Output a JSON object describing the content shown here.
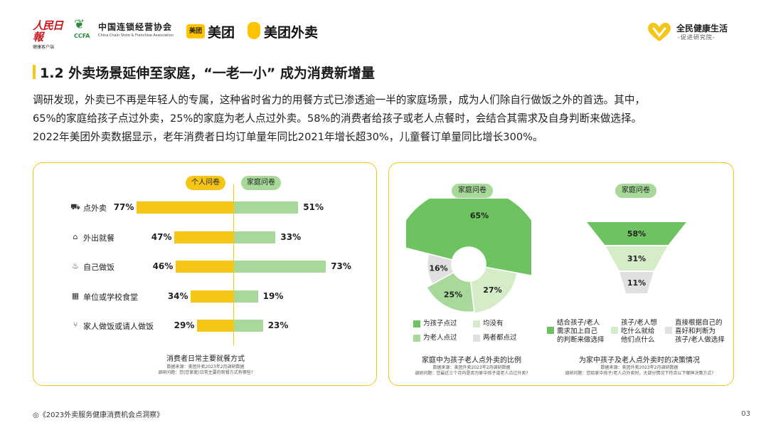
{
  "header": {
    "rmrb_mark": "人民日報",
    "rmrb_sub": "健康客户端",
    "ccfa_abbr": "CCFA",
    "ccfa_cn": "中国连锁经营协会",
    "ccfa_en": "China Chain Store & Franchise Association",
    "meituan_badge": "美团",
    "meituan_name": "美团",
    "meituan_waimai": "美团外卖",
    "right_logo_title": "全民健康生活",
    "right_logo_sub": "-促进研究院-"
  },
  "section_title": "1.2 外卖场景延伸至家庭，“一老一小” 成为消费新增量",
  "body_lines": [
    "调研发现，外卖已不再是年轻人的专属，这种省时省力的用餐方式已渗透逾一半的家庭场景，成为人们除自行做饭之外的首选。其中，",
    "65%的家庭给孩子点过外卖，25%的家庭为老人点过外卖。58%的消费者给孩子或老人点餐时，会结合其需求及自身判断来做选择。",
    "2022年美团外卖数据显示，老年消费者日均订单量年同比2021年增长超30%，儿童餐订单量同比增长300%。"
  ],
  "left_panel": {
    "pill_personal": "个人问卷",
    "pill_family": "家庭问卷",
    "caption_title": "消费者日常主要就餐方式",
    "caption_src1": "数据来源：美团外卖2023年2月调研数据",
    "caption_src2": "调研问题：您(您家庭)日常主要的就餐方式有哪些?"
  },
  "right_panel": {
    "pie_pill": "家庭问卷",
    "funnel_pill": "家庭问卷",
    "pie_caption": "家庭中为孩子老人点外卖的比例",
    "pie_src1": "数据来源：美团外卖2023年2月调研数据",
    "pie_src2": "调研问题：您最近三个月内是否为家中孩子或老人点过外卖?",
    "funnel_caption": "为家中孩子及老人点外卖时的决策情况",
    "funnel_src1": "数据来源：美团外卖2023年2月调研数据",
    "funnel_src2": "调研问题：您给家中孩子/老人点外卖时，大部分情况下符合以下哪种决策方式?",
    "pie_legend": [
      {
        "label": "为孩子点过",
        "color": "#6cc35f"
      },
      {
        "label": "均没有",
        "color": "#d5ecc9"
      },
      {
        "label": "为老人点过",
        "color": "#a8d99a"
      },
      {
        "label": "两者都点过",
        "color": "#e0e0e0"
      }
    ],
    "funnel_legend": [
      {
        "lines": [
          "结合孩子/老人",
          "需求加上自己",
          "的判断来做选择"
        ],
        "color": "#6cc35f"
      },
      {
        "lines": [
          "孩子/老人想",
          "吃什么就给",
          "他们点什么"
        ],
        "color": "#d5ecc9"
      },
      {
        "lines": [
          "直接根据自己的",
          "喜好和判断为",
          "孩子/老人做选择"
        ],
        "color": "#e0e0e0"
      }
    ]
  },
  "chart_data": [
    {
      "type": "bar",
      "title": "消费者日常主要就餐方式",
      "categories": [
        "点外卖",
        "外出就餐",
        "自己做饭",
        "单位或学校食堂",
        "家人做饭或请人做饭"
      ],
      "category_icons": [
        "delivery-icon",
        "dine-out-icon",
        "cooking-pot-icon",
        "canteen-icon",
        "fork-knife-icon"
      ],
      "series": [
        {
          "name": "个人问卷",
          "values": [
            77,
            47,
            46,
            34,
            29
          ],
          "color": "#f5c518"
        },
        {
          "name": "家庭问卷",
          "values": [
            51,
            33,
            73,
            19,
            23
          ],
          "color": "#a8d99a"
        }
      ],
      "value_labels_personal": [
        "77%",
        "47%",
        "46%",
        "34%",
        "29%"
      ],
      "value_labels_family": [
        "51%",
        "33%",
        "73%",
        "19%",
        "23%"
      ],
      "xlim": [
        0,
        100
      ]
    },
    {
      "type": "pie",
      "title": "家庭中为孩子老人点外卖的比例",
      "categories": [
        "为孩子点过",
        "为老人点过",
        "两者都点过",
        "均没有"
      ],
      "values": [
        65,
        25,
        16,
        27
      ],
      "value_labels": [
        "65%",
        "25%",
        "16%",
        "27%"
      ],
      "colors": [
        "#6cc35f",
        "#a8d99a",
        "#e0e0e0",
        "#d5ecc9"
      ]
    },
    {
      "type": "bar",
      "title": "为家中孩子及老人点外卖时的决策情况",
      "categories": [
        "结合孩子/老人需求加上自己的判断来做选择",
        "孩子/老人想吃什么就给他们点什么",
        "直接根据自己的喜好和判断为孩子/老人做选择"
      ],
      "values": [
        58,
        31,
        11
      ],
      "value_labels": [
        "58%",
        "31%",
        "11%"
      ],
      "colors": [
        "#6cc35f",
        "#d5ecc9",
        "#e0e0e0"
      ]
    }
  ],
  "footer": {
    "report_title": "◎《2023外卖服务健康消费机会点洞察》",
    "page_number": "03"
  }
}
